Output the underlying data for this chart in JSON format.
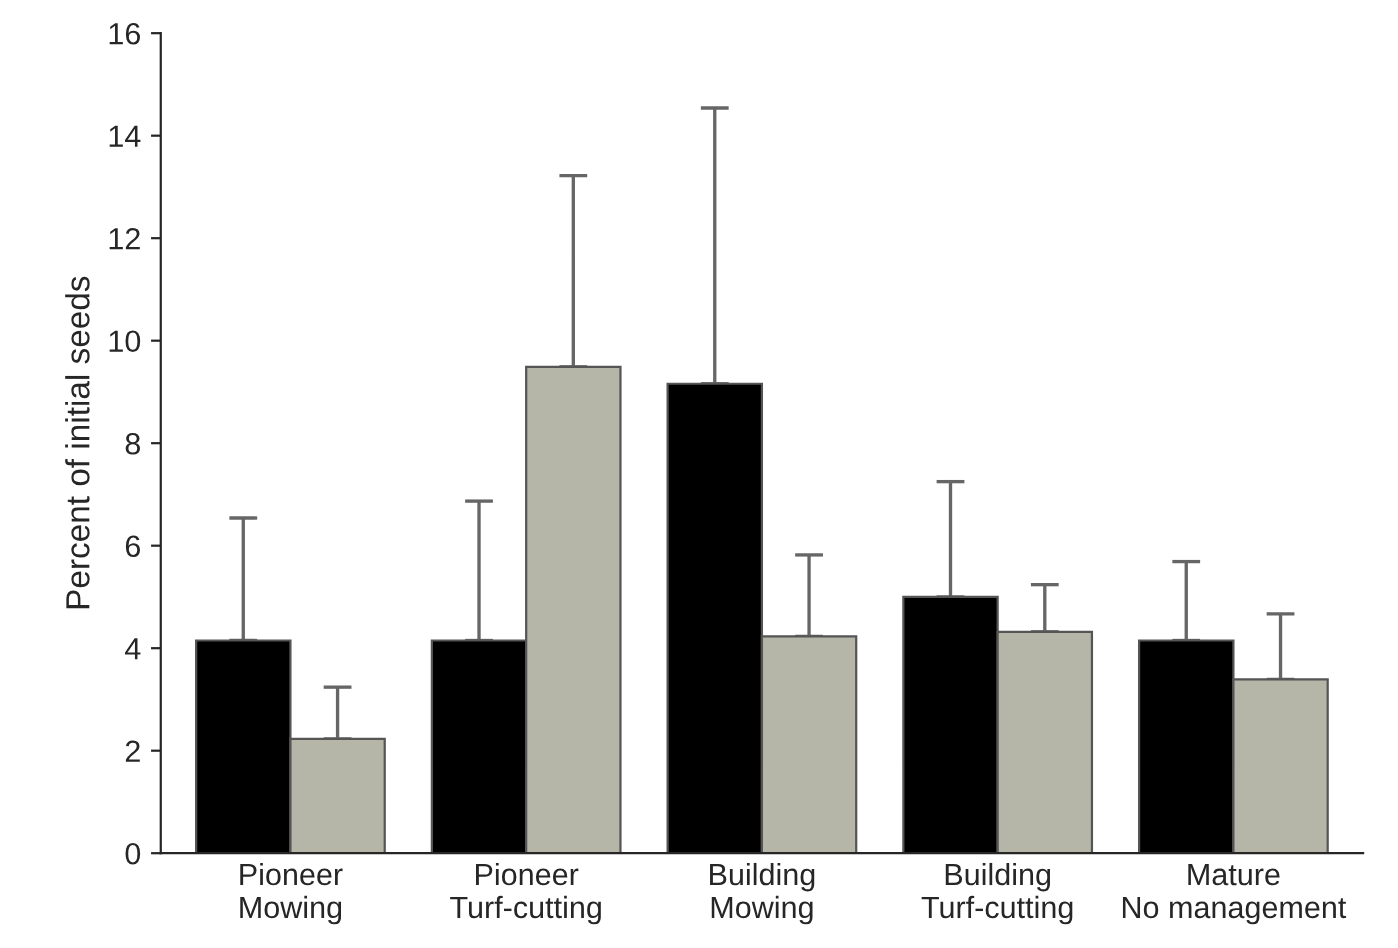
{
  "chart_data": {
    "type": "bar",
    "ylabel": "Percent of initial seeds",
    "categories": [
      "Pioneer\nMowing",
      "Pioneer\nTurf-cutting",
      "Building\nMowing",
      "Building\nTurf-cutting",
      "Mature\nNo management"
    ],
    "series": [
      {
        "color": "#000000",
        "values": [
          4.15,
          4.15,
          9.16,
          5.0,
          4.15
        ],
        "errors": [
          [
            4.15,
            6.54
          ],
          [
            4.15,
            6.87
          ],
          [
            9.16,
            14.54
          ],
          [
            5.0,
            7.25
          ],
          [
            4.15,
            5.69
          ]
        ]
      },
      {
        "color": "#b5b5a8",
        "values": [
          2.23,
          9.49,
          4.23,
          4.32,
          3.39
        ],
        "errors": [
          [
            2.23,
            3.24
          ],
          [
            9.49,
            13.22
          ],
          [
            4.23,
            5.82
          ],
          [
            4.32,
            5.24
          ],
          [
            3.39,
            4.67
          ]
        ]
      }
    ],
    "ylim": [
      0,
      16
    ],
    "yticks": [
      0,
      2,
      4,
      6,
      8,
      10,
      12,
      14,
      16
    ],
    "grid": false,
    "legend": false
  }
}
